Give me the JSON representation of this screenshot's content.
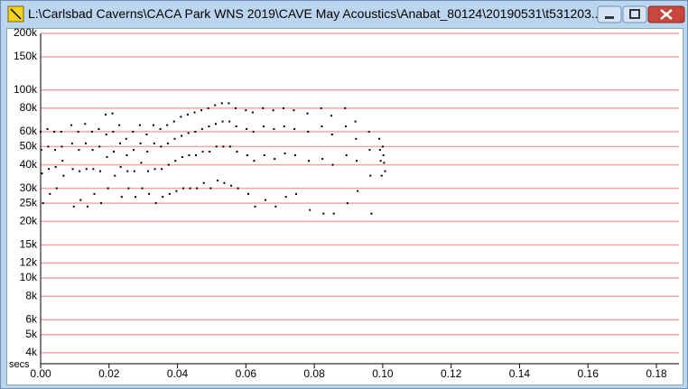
{
  "window": {
    "title": "L:\\Carlsbad Caverns\\CACA Park WNS 2019\\CAVE May Acoustics\\Anabat_80124\\20190531\\t531203..."
  },
  "chart_data": {
    "type": "scatter",
    "xlabel": "secs",
    "color": "#000000",
    "grid_color": "#f4a6a6",
    "log_y": true,
    "xlim": [
      0,
      0.1866
    ],
    "ylim": [
      3500,
      200000
    ],
    "xticks": [
      {
        "value": 0,
        "label": "0.00"
      },
      {
        "value": 0.02,
        "label": "0.02"
      },
      {
        "value": 0.04,
        "label": "0.04"
      },
      {
        "value": 0.06,
        "label": "0.06"
      },
      {
        "value": 0.08,
        "label": "0.08"
      },
      {
        "value": 0.1,
        "label": "0.10"
      },
      {
        "value": 0.12,
        "label": "0.12"
      },
      {
        "value": 0.14,
        "label": "0.14"
      },
      {
        "value": 0.16,
        "label": "0.16"
      },
      {
        "value": 0.18,
        "label": "0.18"
      }
    ],
    "yticks": [
      {
        "value": 4000,
        "label": "4k"
      },
      {
        "value": 5000,
        "label": "5k"
      },
      {
        "value": 6000,
        "label": "6k"
      },
      {
        "value": 8000,
        "label": "8k"
      },
      {
        "value": 10000,
        "label": "10k"
      },
      {
        "value": 12000,
        "label": "12k"
      },
      {
        "value": 15000,
        "label": "15k"
      },
      {
        "value": 20000,
        "label": "20k"
      },
      {
        "value": 25000,
        "label": "25k"
      },
      {
        "value": 30000,
        "label": "30k"
      },
      {
        "value": 40000,
        "label": "40k"
      },
      {
        "value": 50000,
        "label": "50k"
      },
      {
        "value": 60000,
        "label": "60k"
      },
      {
        "value": 80000,
        "label": "80k"
      },
      {
        "value": 100000,
        "label": "100k"
      },
      {
        "value": 150000,
        "label": "150k"
      },
      {
        "value": 200000,
        "label": "200k"
      }
    ],
    "x": [
      0.0,
      0.0002,
      0.0004,
      0.0007,
      0.002,
      0.0022,
      0.0024,
      0.0027,
      0.004,
      0.0042,
      0.0044,
      0.0047,
      0.006,
      0.0062,
      0.0064,
      0.0067,
      0.009,
      0.0092,
      0.0094,
      0.0097,
      0.011,
      0.0112,
      0.0114,
      0.0117,
      0.013,
      0.0132,
      0.0134,
      0.0137,
      0.015,
      0.0152,
      0.0154,
      0.0157,
      0.017,
      0.0172,
      0.0174,
      0.0177,
      0.019,
      0.0192,
      0.0194,
      0.0197,
      0.021,
      0.0212,
      0.0214,
      0.0217,
      0.023,
      0.0232,
      0.0234,
      0.0237,
      0.025,
      0.0252,
      0.0254,
      0.0257,
      0.027,
      0.0272,
      0.0274,
      0.0277,
      0.029,
      0.0292,
      0.0294,
      0.0297,
      0.031,
      0.0312,
      0.0314,
      0.0317,
      0.033,
      0.0332,
      0.0334,
      0.0337,
      0.035,
      0.0352,
      0.0354,
      0.0357,
      0.037,
      0.0372,
      0.0374,
      0.0377,
      0.039,
      0.0392,
      0.0394,
      0.0397,
      0.041,
      0.0412,
      0.0414,
      0.0417,
      0.043,
      0.0432,
      0.0434,
      0.0437,
      0.045,
      0.0452,
      0.0454,
      0.0457,
      0.047,
      0.0472,
      0.0474,
      0.0477,
      0.049,
      0.0492,
      0.0494,
      0.0497,
      0.051,
      0.0512,
      0.0514,
      0.0517,
      0.053,
      0.0532,
      0.0534,
      0.0537,
      0.055,
      0.0552,
      0.0554,
      0.0557,
      0.057,
      0.0572,
      0.0574,
      0.0577,
      0.06,
      0.0602,
      0.0604,
      0.0607,
      0.062,
      0.0622,
      0.0624,
      0.0627,
      0.065,
      0.0652,
      0.0654,
      0.0657,
      0.068,
      0.0682,
      0.0684,
      0.0687,
      0.071,
      0.0712,
      0.0714,
      0.0717,
      0.074,
      0.0742,
      0.0744,
      0.0747,
      0.078,
      0.0782,
      0.0784,
      0.0787,
      0.082,
      0.0822,
      0.0824,
      0.0827,
      0.085,
      0.0852,
      0.0854,
      0.0857,
      0.089,
      0.0892,
      0.0894,
      0.0897,
      0.092,
      0.0922,
      0.0924,
      0.0927,
      0.096,
      0.0962,
      0.0964,
      0.0967,
      0.099,
      0.0992,
      0.0994,
      0.0997,
      0.1,
      0.1002,
      0.1004,
      0.1007
    ],
    "values": [
      60000,
      48000,
      36000,
      25000,
      62000,
      50000,
      38000,
      28000,
      60000,
      48000,
      39000,
      30000,
      60000,
      50000,
      42000,
      35000,
      65000,
      52000,
      38000,
      24000,
      60000,
      48000,
      37000,
      26000,
      66000,
      52000,
      38000,
      24000,
      60000,
      48000,
      38000,
      28000,
      62000,
      50000,
      37000,
      25000,
      74000,
      58000,
      44000,
      30000,
      75000,
      60000,
      47000,
      35000,
      65000,
      52000,
      39000,
      27000,
      55000,
      45000,
      37000,
      30000,
      60000,
      48000,
      37000,
      27000,
      65000,
      52000,
      41000,
      30000,
      58000,
      47000,
      37000,
      28000,
      65000,
      52000,
      38000,
      25000,
      62000,
      50000,
      38000,
      27000,
      65000,
      52000,
      40000,
      28000,
      68000,
      55000,
      42000,
      29000,
      72000,
      57000,
      44000,
      30000,
      74000,
      59000,
      45000,
      30000,
      76000,
      60000,
      45000,
      30000,
      78000,
      62000,
      47000,
      32000,
      80000,
      64000,
      47000,
      30000,
      83000,
      66000,
      50000,
      33000,
      85000,
      68000,
      50000,
      32000,
      85000,
      68000,
      50000,
      31000,
      80000,
      64000,
      47000,
      30000,
      78000,
      62000,
      45000,
      28000,
      76000,
      60000,
      42000,
      24000,
      80000,
      64000,
      45000,
      26000,
      78000,
      62000,
      43000,
      24000,
      80000,
      64000,
      46000,
      27000,
      78000,
      62000,
      45000,
      28000,
      75000,
      60000,
      42000,
      23000,
      80000,
      64000,
      43000,
      22000,
      73000,
      58000,
      40000,
      22000,
      80000,
      64000,
      45000,
      25000,
      68000,
      55000,
      42000,
      29000,
      60000,
      48000,
      35000,
      22000,
      55000,
      48000,
      42000,
      35000,
      50000,
      45000,
      41000,
      37000
    ]
  }
}
